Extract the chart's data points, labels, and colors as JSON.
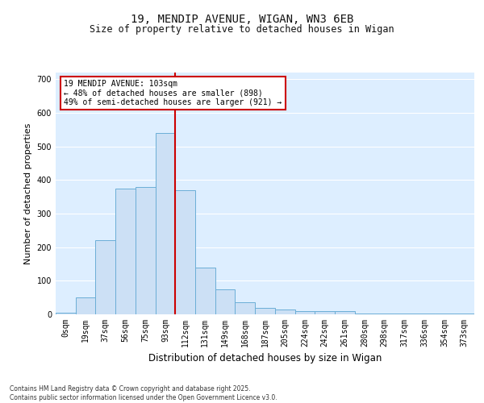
{
  "title_line1": "19, MENDIP AVENUE, WIGAN, WN3 6EB",
  "title_line2": "Size of property relative to detached houses in Wigan",
  "xlabel": "Distribution of detached houses by size in Wigan",
  "ylabel": "Number of detached properties",
  "bar_labels": [
    "0sqm",
    "19sqm",
    "37sqm",
    "56sqm",
    "75sqm",
    "93sqm",
    "112sqm",
    "131sqm",
    "149sqm",
    "168sqm",
    "187sqm",
    "205sqm",
    "224sqm",
    "242sqm",
    "261sqm",
    "280sqm",
    "298sqm",
    "317sqm",
    "336sqm",
    "354sqm",
    "373sqm"
  ],
  "bar_values": [
    5,
    50,
    220,
    375,
    380,
    540,
    370,
    140,
    75,
    35,
    20,
    15,
    10,
    10,
    10,
    2,
    2,
    2,
    2,
    2,
    2
  ],
  "bar_color": "#cce0f5",
  "bar_edge_color": "#6baed6",
  "vline_color": "#cc0000",
  "vline_x": 5.5,
  "annotation_text": "19 MENDIP AVENUE: 103sqm\n← 48% of detached houses are smaller (898)\n49% of semi-detached houses are larger (921) →",
  "annotation_box_color": "#ffffff",
  "annotation_box_edge": "#cc0000",
  "background_color": "#ddeeff",
  "grid_color": "#ffffff",
  "ylim": [
    0,
    720
  ],
  "yticks": [
    0,
    100,
    200,
    300,
    400,
    500,
    600,
    700
  ],
  "title1_fontsize": 10,
  "title2_fontsize": 8.5,
  "ylabel_fontsize": 8,
  "xlabel_fontsize": 8.5,
  "tick_fontsize": 7,
  "annot_fontsize": 7,
  "footnote": "Contains HM Land Registry data © Crown copyright and database right 2025.\nContains public sector information licensed under the Open Government Licence v3.0."
}
